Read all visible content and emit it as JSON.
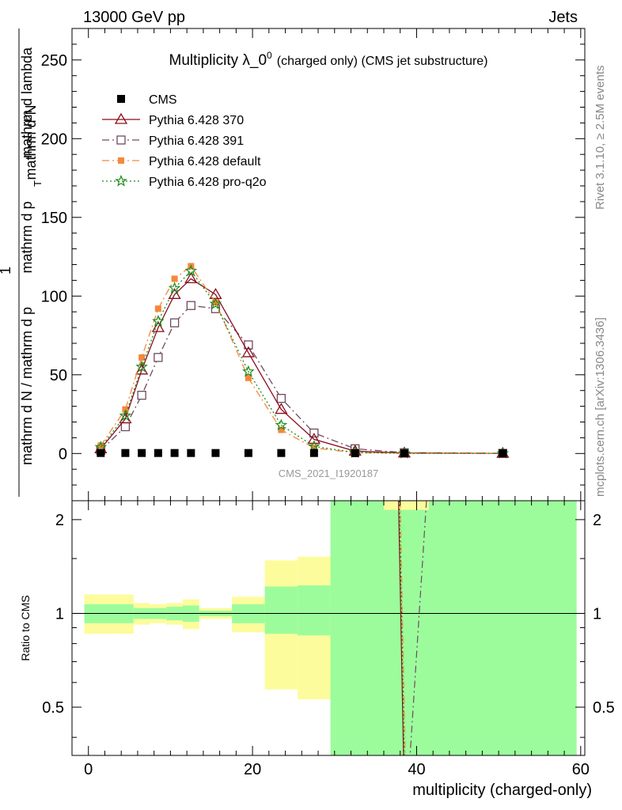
{
  "header": {
    "left": "13000 GeV pp",
    "right": "Jets"
  },
  "side_labels": {
    "rivet": "Rivet 3.1.10, ≥ 2.5M events",
    "mcplots": "mcplots.cern.ch [arXiv:1306.3436]"
  },
  "chart_data": [
    {
      "type": "line",
      "title": "Multiplicity λ_0",
      "title_superscript": "0",
      "title_suffix": "(charged only) (CMS jet substructure)",
      "ylabel_numerator": "mathrm d²N",
      "ylabel_denominator": "mathrm d N / mathrm d p",
      "ylabel_middle": "mathrm d p",
      "ylabel_sub_t": "T",
      "ylabel_tail": "mathrm d lambda",
      "ylabel_tail2": "mathrm d p",
      "ylabel_one": "1",
      "analysis_id": "CMS_2021_I1920187",
      "xlim": [
        -2,
        60.5
      ],
      "ylim": [
        -30,
        270
      ],
      "yticks": [
        "0",
        "50",
        "100",
        "150",
        "200",
        "250"
      ],
      "legend_position": "top-left",
      "series": [
        {
          "name": "CMS",
          "color": "#000000",
          "marker": "filled-square",
          "line": "none",
          "x": [
            1.5,
            4.5,
            6.5,
            8.5,
            10.5,
            12.5,
            15.5,
            19.5,
            23.5,
            27.5,
            32.5,
            38.5,
            50.5
          ],
          "y": [
            0.3,
            0.3,
            0.3,
            0.3,
            0.3,
            0.3,
            0.3,
            0.3,
            0.3,
            0.3,
            0.2,
            0.1,
            0.1
          ]
        },
        {
          "name": "Pythia 6.428 370",
          "color": "#8b0d1c",
          "marker": "open-triangle",
          "line": "solid",
          "x": [
            1.5,
            4.5,
            6.5,
            8.5,
            10.5,
            12.5,
            15.5,
            19.5,
            23.5,
            27.5,
            32.5,
            38.5,
            50.5
          ],
          "y": [
            3,
            22,
            53,
            80,
            101,
            111,
            101,
            64,
            28,
            9,
            1.5,
            0.3,
            0.1
          ]
        },
        {
          "name": "Pythia 6.428 391",
          "color": "#6e4a5e",
          "marker": "open-square",
          "line": "dash-dot",
          "x": [
            1.5,
            4.5,
            6.5,
            8.5,
            10.5,
            12.5,
            15.5,
            19.5,
            23.5,
            27.5,
            32.5,
            38.5,
            50.5
          ],
          "y": [
            2,
            17,
            37,
            61,
            83,
            94,
            92,
            69,
            35,
            13,
            3,
            0.5,
            0.1
          ]
        },
        {
          "name": "Pythia 6.428 default",
          "color": "#f5883a",
          "marker": "filled-square-small",
          "line": "dash-dot",
          "x": [
            1.5,
            4.5,
            6.5,
            8.5,
            10.5,
            12.5,
            15.5,
            19.5,
            23.5,
            27.5,
            32.5,
            38.5,
            50.5
          ],
          "y": [
            5,
            28,
            61,
            92,
            111,
            119,
            96,
            48,
            15,
            3.5,
            0.5,
            0.1,
            0.1
          ]
        },
        {
          "name": "Pythia 6.428 pro-q2o",
          "color": "#1b8a1b",
          "marker": "open-star",
          "line": "dotted",
          "x": [
            1.5,
            4.5,
            6.5,
            8.5,
            10.5,
            12.5,
            15.5,
            19.5,
            23.5,
            27.5,
            32.5,
            38.5,
            50.5
          ],
          "y": [
            4,
            24,
            55,
            84,
            105,
            116,
            95,
            52,
            18,
            4.5,
            0.6,
            0.1,
            0.1
          ]
        }
      ]
    },
    {
      "type": "area",
      "ylabel": "Ratio to CMS",
      "xlabel": "multiplicity (charged-only)",
      "xlim": [
        -2,
        60.5
      ],
      "ylim": [
        0.35,
        2.3
      ],
      "xticks": [
        "0",
        "20",
        "40",
        "60"
      ],
      "yticks": [
        "0.5",
        "1",
        "2"
      ],
      "ytick_values": [
        0.5,
        1,
        2
      ],
      "xtick_values": [
        0,
        20,
        40,
        60
      ],
      "reference_line": 1,
      "bands": [
        {
          "x0": -0.5,
          "x1": 3.5,
          "stat": [
            0.93,
            1.07
          ],
          "total": [
            0.86,
            1.15
          ]
        },
        {
          "x0": 3.5,
          "x1": 5.5,
          "stat": [
            0.93,
            1.07
          ],
          "total": [
            0.86,
            1.15
          ]
        },
        {
          "x0": 5.5,
          "x1": 7.5,
          "stat": [
            0.96,
            1.04
          ],
          "total": [
            0.92,
            1.08
          ]
        },
        {
          "x0": 7.5,
          "x1": 9.5,
          "stat": [
            0.96,
            1.04
          ],
          "total": [
            0.93,
            1.07
          ]
        },
        {
          "x0": 9.5,
          "x1": 11.5,
          "stat": [
            0.95,
            1.05
          ],
          "total": [
            0.92,
            1.08
          ]
        },
        {
          "x0": 11.5,
          "x1": 13.5,
          "stat": [
            0.94,
            1.06
          ],
          "total": [
            0.89,
            1.11
          ]
        },
        {
          "x0": 13.5,
          "x1": 17.5,
          "stat": [
            0.98,
            1.02
          ],
          "total": [
            0.96,
            1.04
          ]
        },
        {
          "x0": 17.5,
          "x1": 21.5,
          "stat": [
            0.93,
            1.07
          ],
          "total": [
            0.87,
            1.13
          ]
        },
        {
          "x0": 21.5,
          "x1": 25.5,
          "stat": [
            0.86,
            1.22
          ],
          "total": [
            0.57,
            1.48
          ]
        },
        {
          "x0": 25.5,
          "x1": 29.5,
          "stat": [
            0.85,
            1.23
          ],
          "total": [
            0.53,
            1.52
          ]
        },
        {
          "x0": 29.5,
          "x1": 59.5,
          "stat": [
            0.3,
            2.3
          ],
          "total": [
            0.3,
            2.3
          ]
        }
      ],
      "top_yellow_segment": {
        "x0": 36,
        "x1": 41.5,
        "y0": 2.15,
        "y1": 2.3
      },
      "ratio_lines": [
        {
          "name": "Pythia 6.428 370",
          "color": "#8b0d1c",
          "x": [
            37.8,
            38.4
          ],
          "y": [
            2.4,
            0.3
          ]
        },
        {
          "name": "Pythia 6.428 default",
          "color": "#f5883a",
          "x": [
            38.0,
            38.6
          ],
          "y": [
            2.4,
            0.3
          ]
        },
        {
          "name": "Pythia 6.428 pro-q2o",
          "color": "#1b8a1b",
          "x": [
            37.9,
            38.5
          ],
          "y": [
            2.4,
            0.3
          ]
        },
        {
          "name": "Pythia 6.428 391",
          "color": "#6e4a5e",
          "x": [
            41.2,
            39.2
          ],
          "y": [
            2.3,
            0.3
          ]
        }
      ]
    }
  ],
  "colors": {
    "stat_band": "#9cfc9c",
    "total_band": "#fcfc9c",
    "axis": "#000000",
    "side_text": "#888888"
  }
}
